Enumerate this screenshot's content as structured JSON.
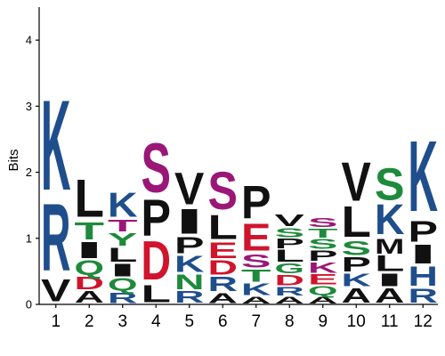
{
  "chart_data": {
    "type": "sequence-logo",
    "title": "",
    "xlabel": "",
    "ylabel": "Bits",
    "ylim": [
      0,
      4.5
    ],
    "y_ticks": [
      "0",
      "1",
      "2",
      "3",
      "4"
    ],
    "x_ticks": [
      "1",
      "2",
      "3",
      "4",
      "5",
      "6",
      "7",
      "8",
      "9",
      "10",
      "11",
      "12"
    ],
    "colors": {
      "blue": "#1f4e8c",
      "green": "#1e8a3c",
      "red": "#d0142c",
      "purple": "#9b1777",
      "black": "#111111"
    },
    "columns": [
      {
        "position": "1",
        "stack": [
          {
            "letter": "V",
            "bits": 0.38,
            "color": "black"
          },
          {
            "letter": "R",
            "bits": 1.17,
            "color": "blue"
          },
          {
            "letter": "K",
            "bits": 1.57,
            "color": "blue"
          }
        ]
      },
      {
        "position": "2",
        "stack": [
          {
            "letter": "A",
            "bits": 0.2,
            "color": "black"
          },
          {
            "letter": "D",
            "bits": 0.22,
            "color": "red"
          },
          {
            "letter": "Q",
            "bits": 0.25,
            "color": "green"
          },
          {
            "letter": "I",
            "bits": 0.28,
            "color": "black"
          },
          {
            "letter": "T",
            "bits": 0.3,
            "color": "green"
          },
          {
            "letter": "L",
            "bits": 0.65,
            "color": "black"
          }
        ]
      },
      {
        "position": "3",
        "stack": [
          {
            "letter": "R",
            "bits": 0.18,
            "color": "blue"
          },
          {
            "letter": "Q",
            "bits": 0.22,
            "color": "green"
          },
          {
            "letter": "I",
            "bits": 0.22,
            "color": "black"
          },
          {
            "letter": "L",
            "bits": 0.24,
            "color": "black"
          },
          {
            "letter": "Y",
            "bits": 0.22,
            "color": "green"
          },
          {
            "letter": "T",
            "bits": 0.2,
            "color": "purple"
          },
          {
            "letter": "K",
            "bits": 0.42,
            "color": "blue"
          }
        ]
      },
      {
        "position": "4",
        "stack": [
          {
            "letter": "L",
            "bits": 0.3,
            "color": "black"
          },
          {
            "letter": "D",
            "bits": 0.67,
            "color": "red"
          },
          {
            "letter": "P",
            "bits": 0.63,
            "color": "black"
          },
          {
            "letter": "S",
            "bits": 0.86,
            "color": "purple"
          }
        ]
      },
      {
        "position": "5",
        "stack": [
          {
            "letter": "R",
            "bits": 0.2,
            "color": "blue"
          },
          {
            "letter": "N",
            "bits": 0.26,
            "color": "green"
          },
          {
            "letter": "K",
            "bits": 0.28,
            "color": "blue"
          },
          {
            "letter": "P",
            "bits": 0.28,
            "color": "black"
          },
          {
            "letter": "I",
            "bits": 0.43,
            "color": "black"
          },
          {
            "letter": "V",
            "bits": 0.55,
            "color": "black"
          }
        ]
      },
      {
        "position": "6",
        "stack": [
          {
            "letter": "A",
            "bits": 0.17,
            "color": "black"
          },
          {
            "letter": "R",
            "bits": 0.25,
            "color": "blue"
          },
          {
            "letter": "D",
            "bits": 0.25,
            "color": "red"
          },
          {
            "letter": "E",
            "bits": 0.27,
            "color": "red"
          },
          {
            "letter": "L",
            "bits": 0.42,
            "color": "black"
          },
          {
            "letter": "S",
            "bits": 0.66,
            "color": "purple"
          }
        ]
      },
      {
        "position": "7",
        "stack": [
          {
            "letter": "A",
            "bits": 0.12,
            "color": "black"
          },
          {
            "letter": "K",
            "bits": 0.2,
            "color": "blue"
          },
          {
            "letter": "T",
            "bits": 0.21,
            "color": "green"
          },
          {
            "letter": "S",
            "bits": 0.23,
            "color": "purple"
          },
          {
            "letter": "E",
            "bits": 0.47,
            "color": "red"
          },
          {
            "letter": "P",
            "bits": 0.57,
            "color": "black"
          }
        ]
      },
      {
        "position": "8",
        "stack": [
          {
            "letter": "A",
            "bits": 0.12,
            "color": "black"
          },
          {
            "letter": "R",
            "bits": 0.15,
            "color": "blue"
          },
          {
            "letter": "D",
            "bits": 0.18,
            "color": "red"
          },
          {
            "letter": "G",
            "bits": 0.17,
            "color": "green"
          },
          {
            "letter": "L",
            "bits": 0.21,
            "color": "black"
          },
          {
            "letter": "P",
            "bits": 0.17,
            "color": "black"
          },
          {
            "letter": "S",
            "bits": 0.16,
            "color": "green"
          },
          {
            "letter": "V",
            "bits": 0.2,
            "color": "black"
          }
        ]
      },
      {
        "position": "9",
        "stack": [
          {
            "letter": "A",
            "bits": 0.12,
            "color": "black"
          },
          {
            "letter": "Q",
            "bits": 0.16,
            "color": "green"
          },
          {
            "letter": "E",
            "bits": 0.18,
            "color": "red"
          },
          {
            "letter": "K",
            "bits": 0.18,
            "color": "purple"
          },
          {
            "letter": "P",
            "bits": 0.18,
            "color": "black"
          },
          {
            "letter": "S",
            "bits": 0.17,
            "color": "green"
          },
          {
            "letter": "T",
            "bits": 0.16,
            "color": "green"
          },
          {
            "letter": "S",
            "bits": 0.16,
            "color": "purple"
          }
        ]
      },
      {
        "position": "10",
        "stack": [
          {
            "letter": "A",
            "bits": 0.25,
            "color": "black"
          },
          {
            "letter": "K",
            "bits": 0.22,
            "color": "blue"
          },
          {
            "letter": "P",
            "bits": 0.25,
            "color": "black"
          },
          {
            "letter": "S",
            "bits": 0.24,
            "color": "green"
          },
          {
            "letter": "L",
            "bits": 0.53,
            "color": "black"
          },
          {
            "letter": "V",
            "bits": 0.68,
            "color": "black"
          }
        ]
      },
      {
        "position": "11",
        "stack": [
          {
            "letter": "A",
            "bits": 0.25,
            "color": "black"
          },
          {
            "letter": "I",
            "bits": 0.22,
            "color": "black"
          },
          {
            "letter": "L",
            "bits": 0.27,
            "color": "black"
          },
          {
            "letter": "M",
            "bits": 0.26,
            "color": "black"
          },
          {
            "letter": "K",
            "bits": 0.52,
            "color": "blue"
          },
          {
            "letter": "S",
            "bits": 0.55,
            "color": "green"
          }
        ]
      },
      {
        "position": "12",
        "stack": [
          {
            "letter": "R",
            "bits": 0.24,
            "color": "blue"
          },
          {
            "letter": "H",
            "bits": 0.34,
            "color": "blue"
          },
          {
            "letter": "I",
            "bits": 0.33,
            "color": "black"
          },
          {
            "letter": "P",
            "bits": 0.36,
            "color": "black"
          },
          {
            "letter": "K",
            "bits": 1.23,
            "color": "blue"
          }
        ]
      }
    ]
  }
}
